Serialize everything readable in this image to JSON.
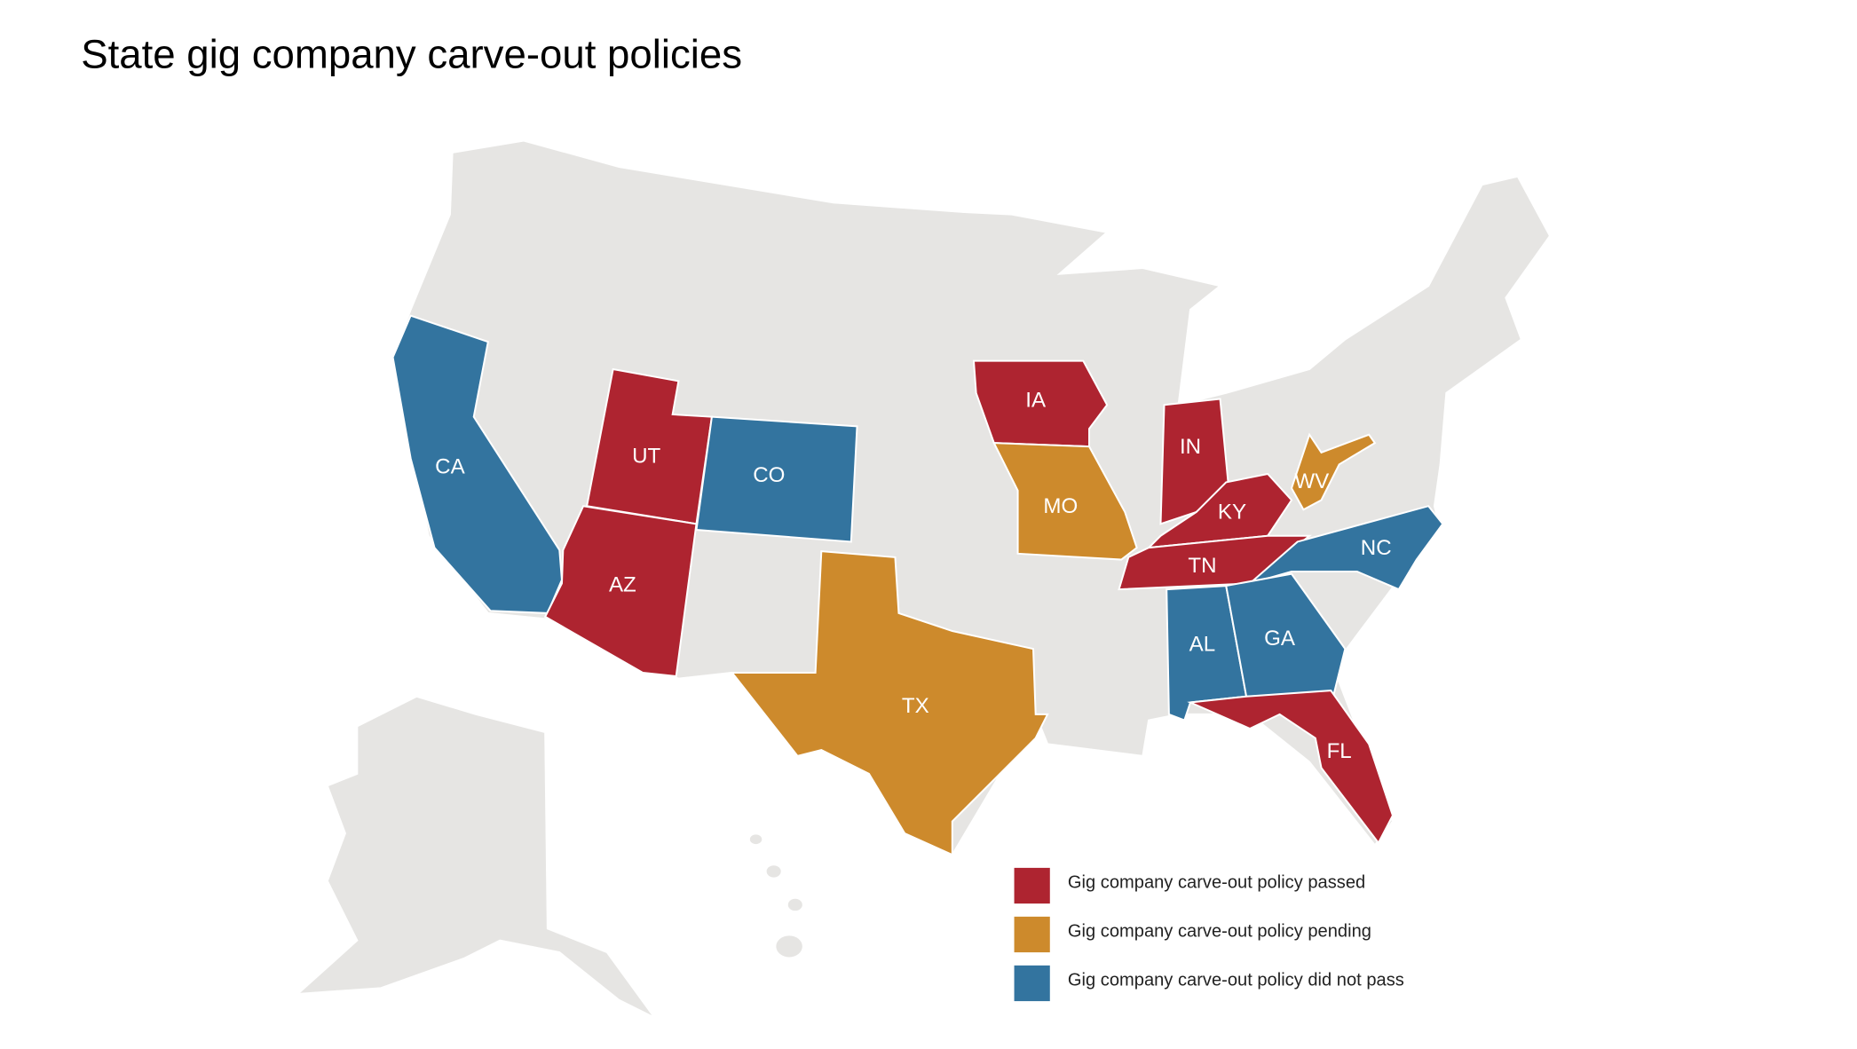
{
  "title": "State gig company carve-out policies",
  "legend": [
    {
      "label": "Gig company carve-out policy passed",
      "color": "#ae2430"
    },
    {
      "label": "Gig company carve-out policy pending",
      "color": "#cd8a2c"
    },
    {
      "label": "Gig company carve-out policy did not pass",
      "color": "#33749f"
    }
  ],
  "base_color": "#e6e5e3",
  "states": [
    {
      "label": "CA",
      "category": 2
    },
    {
      "label": "UT",
      "category": 0
    },
    {
      "label": "CO",
      "category": 2
    },
    {
      "label": "AZ",
      "category": 0
    },
    {
      "label": "TX",
      "category": 1
    },
    {
      "label": "IA",
      "category": 0
    },
    {
      "label": "MO",
      "category": 1
    },
    {
      "label": "IN",
      "category": 0
    },
    {
      "label": "KY",
      "category": 0
    },
    {
      "label": "WV",
      "category": 1
    },
    {
      "label": "TN",
      "category": 0
    },
    {
      "label": "NC",
      "category": 2
    },
    {
      "label": "AL",
      "category": 2
    },
    {
      "label": "GA",
      "category": 2
    },
    {
      "label": "FL",
      "category": 0
    }
  ]
}
